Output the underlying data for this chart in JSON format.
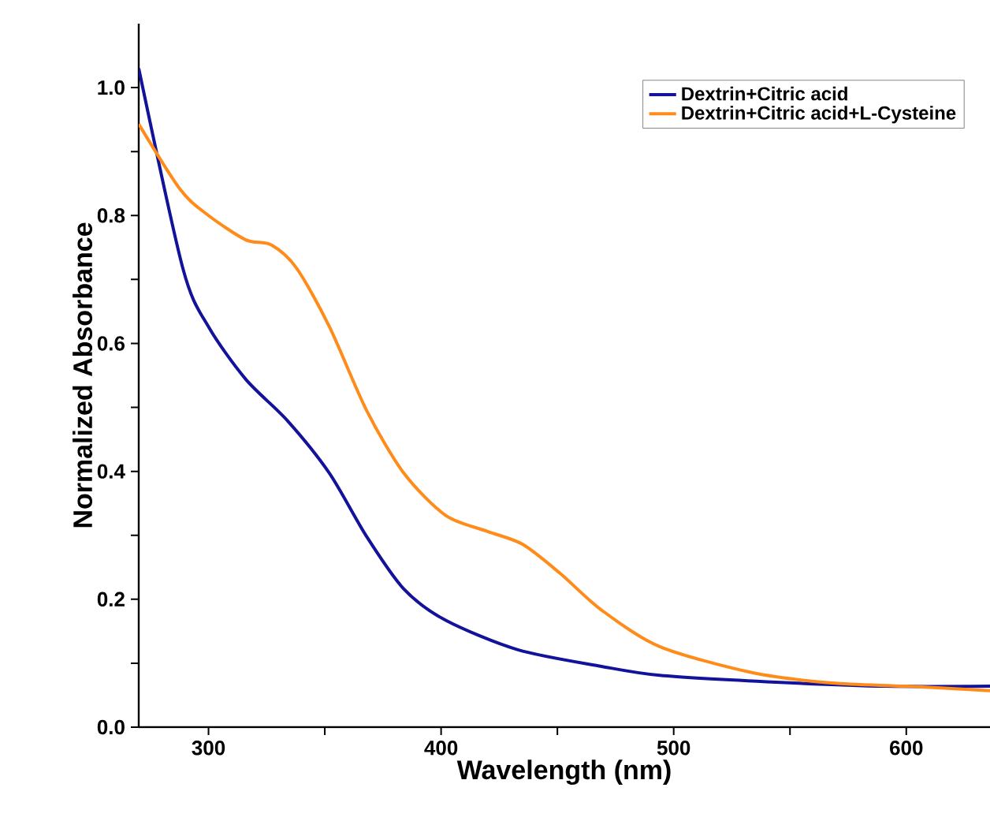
{
  "chart_data": {
    "type": "line",
    "xlabel": "Wavelength (nm)",
    "ylabel": "Normalized Absorbance",
    "xlim": [
      270,
      636
    ],
    "ylim": [
      0,
      1.1
    ],
    "xticks": [
      300,
      {
        "value": 350,
        "label": null
      },
      400,
      {
        "value": 450,
        "label": null
      },
      500,
      {
        "value": 550,
        "label": null
      },
      600
    ],
    "yticks": [
      {
        "value": 0,
        "label": "0.0"
      },
      {
        "value": 0.1,
        "label": null
      },
      {
        "value": 0.2,
        "label": "0.2"
      },
      {
        "value": 0.3,
        "label": null
      },
      {
        "value": 0.4,
        "label": "0.4"
      },
      {
        "value": 0.5,
        "label": null
      },
      {
        "value": 0.6,
        "label": "0.6"
      },
      {
        "value": 0.7,
        "label": null
      },
      {
        "value": 0.8,
        "label": "0.8"
      },
      {
        "value": 0.9,
        "label": null
      },
      {
        "value": 1.0,
        "label": "1.0"
      }
    ],
    "grid": false,
    "legend": "top right",
    "marker": "none",
    "line_style": "solid",
    "series": [
      {
        "name": "Dextrin+Citric acid",
        "color": "#12129a",
        "x": [
          270,
          289,
          300,
          316,
          334,
          352,
          368,
          384,
          402,
          433,
          469,
          494,
          540,
          591,
          636
        ],
        "values": [
          1.03,
          0.717,
          0.626,
          0.544,
          0.479,
          0.397,
          0.298,
          0.216,
          0.167,
          0.121,
          0.095,
          0.081,
          0.071,
          0.064,
          0.064
        ]
      },
      {
        "name": "Dextrin+Citric acid+L-Cysteine",
        "color": "#ff8c1a",
        "x": [
          270,
          288,
          300,
          316,
          327,
          338,
          352,
          368,
          384,
          402,
          420,
          435,
          451,
          469,
          494,
          534,
          568,
          600,
          636
        ],
        "values": [
          0.943,
          0.84,
          0.8,
          0.762,
          0.754,
          0.717,
          0.626,
          0.495,
          0.397,
          0.331,
          0.306,
          0.286,
          0.241,
          0.183,
          0.126,
          0.085,
          0.069,
          0.064,
          0.057
        ]
      }
    ]
  }
}
